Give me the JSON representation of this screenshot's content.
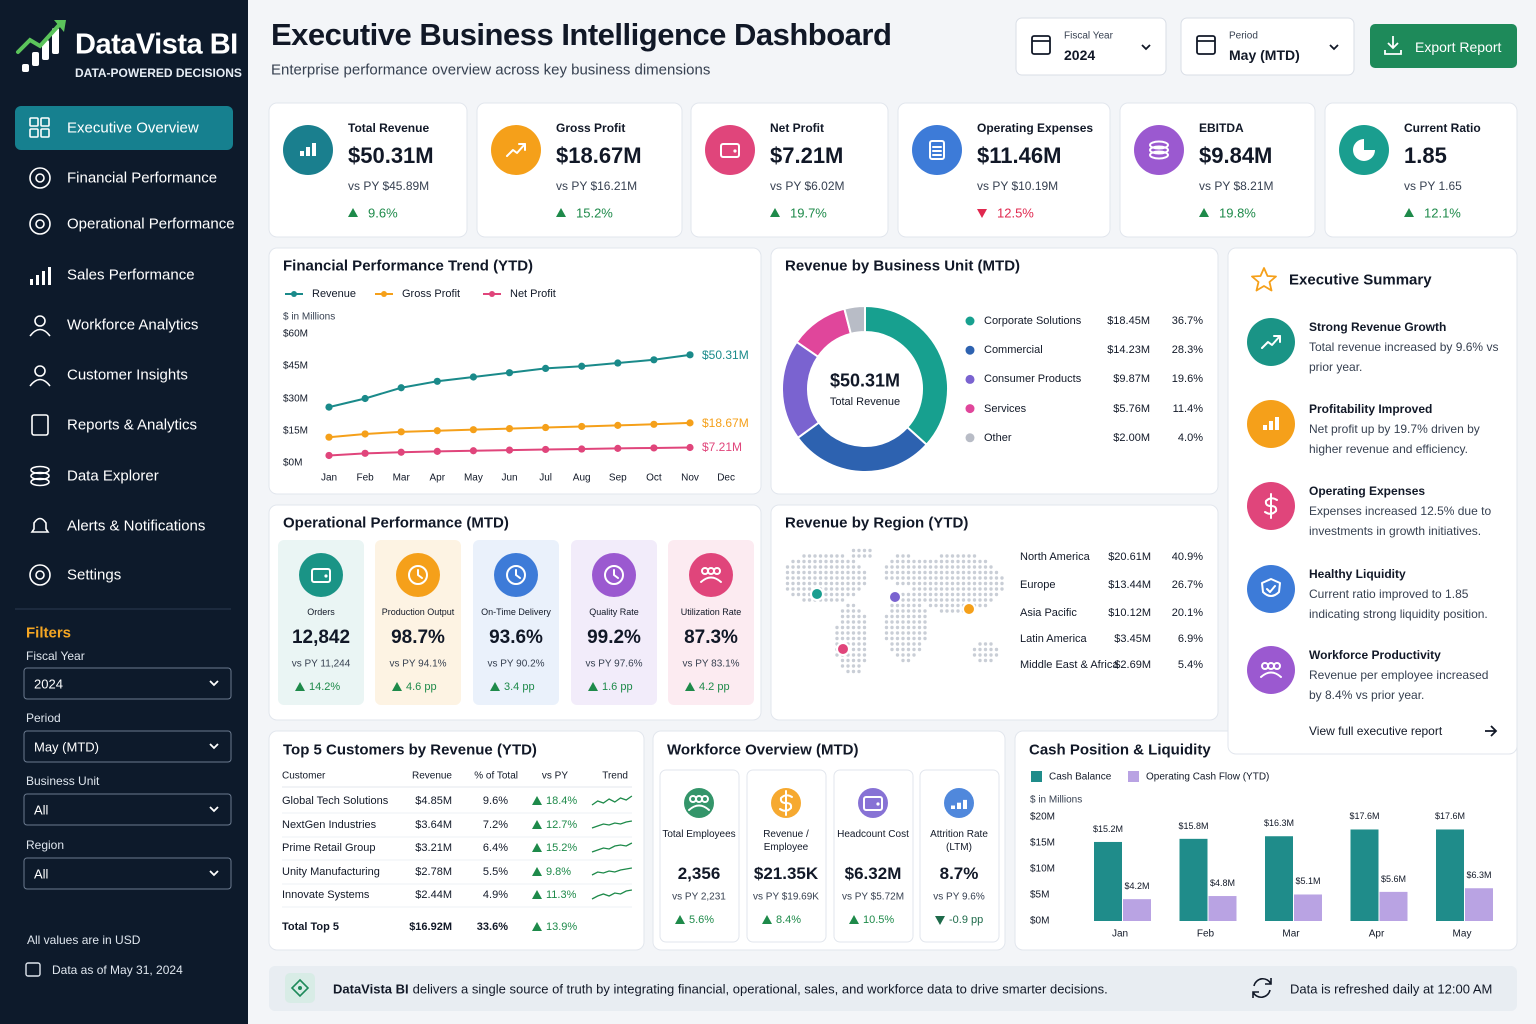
{
  "sidebar": {
    "brand": "DataVista BI",
    "tagline": "DATA-POWERED DECISIONS",
    "nav": [
      "Executive Overview",
      "Financial Performance",
      "Operational Performance",
      "Sales Performance",
      "Workforce Analytics",
      "Customer Insights",
      "Reports & Analytics",
      "Data Explorer",
      "Alerts & Notifications",
      "Settings"
    ],
    "filters_title": "Filters",
    "filters": [
      {
        "label": "Fiscal Year",
        "value": "2024"
      },
      {
        "label": "Period",
        "value": "May (MTD)"
      },
      {
        "label": "Business Unit",
        "value": "All"
      },
      {
        "label": "Region",
        "value": "All"
      }
    ],
    "footnote": "All values are in USD",
    "data_as_of": "Data as of May 31, 2024"
  },
  "header": {
    "title": "Executive Business Intelligence Dashboard",
    "subtitle": "Enterprise performance overview across key business dimensions",
    "selectors": [
      {
        "label": "Fiscal Year",
        "value": "2024"
      },
      {
        "label": "Period",
        "value": "May (MTD)"
      }
    ],
    "export": "Export Report"
  },
  "kpis": [
    {
      "label": "Total Revenue",
      "value": "$50.31M",
      "previous": "vs PY $45.89M",
      "change": "9.6%",
      "direction": "up",
      "color": "#1a7f8e"
    },
    {
      "label": "Gross Profit",
      "value": "$18.67M",
      "previous": "vs PY $16.21M",
      "change": "15.2%",
      "direction": "up",
      "color": "#f5a01a"
    },
    {
      "label": "Net Profit",
      "value": "$7.21M",
      "previous": "vs PY $6.02M",
      "change": "19.7%",
      "direction": "up",
      "color": "#e0457b"
    },
    {
      "label": "Operating Expenses",
      "value": "$11.46M",
      "previous": "vs PY $10.19M",
      "change": "12.5%",
      "direction": "down",
      "color": "#3d7bd8"
    },
    {
      "label": "EBITDA",
      "value": "$9.84M",
      "previous": "vs PY $8.21M",
      "change": "19.8%",
      "direction": "up",
      "color": "#9b59d0"
    },
    {
      "label": "Current Ratio",
      "value": "1.85",
      "previous": "vs PY 1.65",
      "change": "12.1%",
      "direction": "up",
      "color": "#1a9e8f"
    }
  ],
  "chart_data": [
    {
      "type": "line",
      "title": "Financial Performance Trend (YTD)",
      "unit_label": "$ in Millions",
      "categories": [
        "Jan",
        "Feb",
        "Mar",
        "Apr",
        "May",
        "Jun",
        "Jul",
        "Aug",
        "Sep",
        "Oct",
        "Nov",
        "Dec"
      ],
      "series": [
        {
          "name": "Revenue",
          "color": "#1a8a8a",
          "values": [
            26,
            30,
            35,
            38,
            40,
            42,
            44,
            45,
            46.5,
            48,
            50.31,
            null
          ],
          "value_labels": [
            null,
            null,
            null,
            null,
            null,
            null,
            null,
            null,
            null,
            null,
            "$50.31M",
            null
          ]
        },
        {
          "name": "Gross Profit",
          "color": "#f5a01a",
          "values": [
            12,
            13.5,
            14.5,
            15,
            15.5,
            16,
            16.5,
            17,
            17.5,
            18,
            18.67,
            null
          ],
          "value_labels": [
            null,
            null,
            null,
            null,
            null,
            null,
            null,
            null,
            null,
            null,
            "$18.67M",
            null
          ]
        },
        {
          "name": "Net Profit",
          "color": "#e0457b",
          "values": [
            3.5,
            4.5,
            5,
            5.4,
            5.7,
            6,
            6.3,
            6.5,
            6.8,
            7,
            7.21,
            null
          ],
          "value_labels": [
            null,
            null,
            null,
            null,
            null,
            null,
            null,
            null,
            null,
            null,
            "$7.21M",
            null
          ]
        }
      ],
      "ylim": [
        0,
        60
      ],
      "yticks": [
        {
          "value": 0,
          "label": "$0M"
        },
        {
          "value": 15,
          "label": "$15M"
        },
        {
          "value": 30,
          "label": "$30M"
        },
        {
          "value": 45,
          "label": "$45M"
        },
        {
          "value": 60,
          "label": "$60M"
        }
      ],
      "grid": false
    },
    {
      "type": "donut",
      "title": "Revenue by Business Unit (MTD)",
      "center_value": "$50.31M",
      "center_label": "Total Revenue",
      "categories": [
        "Corporate Solutions",
        "Commercial",
        "Consumer Products",
        "Services",
        "Other"
      ],
      "amounts": [
        "$18.45M",
        "$14.23M",
        "$9.87M",
        "$5.76M",
        "$2.00M"
      ],
      "values": [
        36.7,
        28.3,
        19.6,
        11.4,
        4.0
      ],
      "value_labels": [
        "36.7%",
        "28.3%",
        "19.6%",
        "11.4%",
        "4.0%"
      ],
      "colors": [
        "#17a08f",
        "#2d62b0",
        "#7a63d0",
        "#e0469b",
        "#b8bcc6"
      ]
    },
    {
      "type": "bar",
      "title": "Cash Position & Liquidity",
      "unit_label": "$ in Millions",
      "categories": [
        "Jan",
        "Feb",
        "Mar",
        "Apr",
        "May"
      ],
      "series": [
        {
          "name": "Cash Balance",
          "color": "#1f8c8a",
          "values": [
            15.2,
            15.8,
            16.3,
            17.6,
            17.6
          ],
          "value_labels": [
            "$15.2M",
            "$15.8M",
            "$16.3M",
            "$17.6M",
            "$17.6M"
          ]
        },
        {
          "name": "Operating Cash Flow (YTD)",
          "color": "#b9a3e3",
          "values": [
            4.2,
            4.8,
            5.1,
            5.6,
            6.3
          ],
          "value_labels": [
            "$4.2M",
            "$4.8M",
            "$5.1M",
            "$5.6M",
            "$6.3M"
          ]
        }
      ],
      "ylim": [
        0,
        20
      ],
      "yticks": [
        {
          "value": 0,
          "label": "$0M"
        },
        {
          "value": 5,
          "label": "$5M"
        },
        {
          "value": 10,
          "label": "$10M"
        },
        {
          "value": 15,
          "label": "$15M"
        },
        {
          "value": 20,
          "label": "$20M"
        }
      ],
      "grid": false
    }
  ],
  "regions": {
    "title": "Revenue by Region (YTD)",
    "rows": [
      {
        "name": "North America",
        "revenue": "$20.61M",
        "share": "40.9%"
      },
      {
        "name": "Europe",
        "revenue": "$13.44M",
        "share": "26.7%"
      },
      {
        "name": "Asia Pacific",
        "revenue": "$10.12M",
        "share": "20.1%"
      },
      {
        "name": "Latin America",
        "revenue": "$3.45M",
        "share": "6.9%"
      },
      {
        "name": "Middle East & Africa",
        "revenue": "$2.69M",
        "share": "5.4%"
      }
    ]
  },
  "operations": {
    "title": "Operational Performance (MTD)",
    "cards": [
      {
        "label": "Orders",
        "value": "12,842",
        "previous": "vs PY 11,244",
        "change": "14.2%",
        "color": "#1a9486",
        "background": "#eaf5f4"
      },
      {
        "label": "Production Output",
        "value": "98.7%",
        "previous": "vs PY 94.1%",
        "change": "4.6 pp",
        "color": "#f5a01a",
        "background": "#fdf3e3"
      },
      {
        "label": "On-Time Delivery",
        "value": "93.6%",
        "previous": "vs PY 90.2%",
        "change": "3.4 pp",
        "color": "#3d7bd8",
        "background": "#eaf1fb"
      },
      {
        "label": "Quality Rate",
        "value": "99.2%",
        "previous": "vs PY 97.6%",
        "change": "1.6 pp",
        "color": "#9b59d0",
        "background": "#f2ecfa"
      },
      {
        "label": "Utilization Rate",
        "value": "87.3%",
        "previous": "vs PY 83.1%",
        "change": "4.2 pp",
        "color": "#e0457b",
        "background": "#fcebf1"
      }
    ]
  },
  "customers": {
    "title": "Top 5 Customers by Revenue (YTD)",
    "headers": [
      "Customer",
      "Revenue",
      "% of Total",
      "vs PY",
      "Trend"
    ],
    "rows": [
      {
        "name": "Global Tech Solutions",
        "revenue": "$4.85M",
        "share": "9.6%",
        "change": "18.4%"
      },
      {
        "name": "NextGen Industries",
        "revenue": "$3.64M",
        "share": "7.2%",
        "change": "12.7%"
      },
      {
        "name": "Prime Retail Group",
        "revenue": "$3.21M",
        "share": "6.4%",
        "change": "15.2%"
      },
      {
        "name": "Unity Manufacturing",
        "revenue": "$2.78M",
        "share": "5.5%",
        "change": "9.8%"
      },
      {
        "name": "Innovate Systems",
        "revenue": "$2.44M",
        "share": "4.9%",
        "change": "11.3%"
      }
    ],
    "total": {
      "name": "Total Top 5",
      "revenue": "$16.92M",
      "share": "33.6%",
      "change": "13.9%"
    }
  },
  "workforce": {
    "title": "Workforce Overview (MTD)",
    "cards": [
      {
        "label": "Total Employees",
        "value": "2,356",
        "previous": "vs PY 2,231",
        "change": "5.6%",
        "direction": "up"
      },
      {
        "label": "Revenue / Employee",
        "value": "$21.35K",
        "previous": "vs PY $19.69K",
        "change": "8.4%",
        "direction": "up"
      },
      {
        "label": "Headcount Cost",
        "value": "$6.32M",
        "previous": "vs PY $5.72M",
        "change": "10.5%",
        "direction": "up"
      },
      {
        "label": "Attrition Rate (LTM)",
        "value": "8.7%",
        "previous": "vs PY 9.6%",
        "change": "-0.9 pp",
        "direction": "down"
      }
    ]
  },
  "summary": {
    "title": "Executive Summary",
    "items": [
      {
        "title": "Strong Revenue Growth",
        "text": "Total revenue increased by 9.6% vs prior year.",
        "color": "#1a9486"
      },
      {
        "title": "Profitability Improved",
        "text": "Net profit up by 19.7% driven by higher revenue and efficiency.",
        "color": "#f5a01a"
      },
      {
        "title": "Operating Expenses",
        "text": "Expenses increased 12.5% due to investments in growth initiatives.",
        "color": "#e0457b"
      },
      {
        "title": "Healthy Liquidity",
        "text": "Current ratio improved to 1.85 indicating strong liquidity position.",
        "color": "#3d7bd8"
      },
      {
        "title": "Workforce Productivity",
        "text": "Revenue per employee increased by 8.4% vs prior year.",
        "color": "#9b59d0"
      }
    ],
    "link": "View full executive report"
  },
  "footer": {
    "brand": "DataVista BI",
    "text": "delivers a single source of truth by integrating financial, operational, sales, and workforce data to drive smarter decisions.",
    "refresh": "Data is refreshed daily at 12:00 AM"
  }
}
